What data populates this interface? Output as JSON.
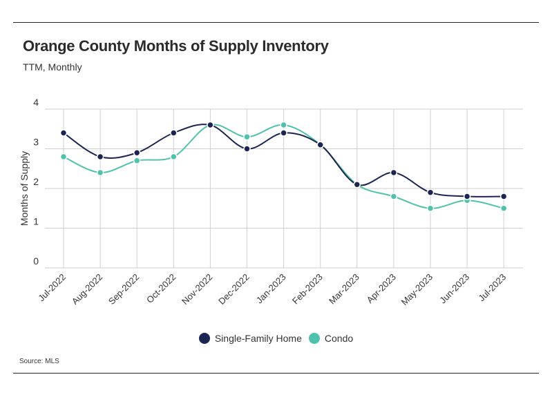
{
  "title": "Orange County Months of Supply Inventory",
  "subtitle": "TTM, Monthly",
  "source": "Source:  MLS",
  "chart_data": {
    "type": "line",
    "title": "Orange County Months of Supply Inventory",
    "subtitle": "TTM, Monthly",
    "xlabel": "",
    "ylabel": "Months of Supply",
    "ylim": [
      0,
      4
    ],
    "yticks": [
      0,
      1,
      2,
      3,
      4
    ],
    "grid": true,
    "legend": "bottom",
    "categories": [
      "Jul-2022",
      "Aug-2022",
      "Sep-2022",
      "Oct-2022",
      "Nov-2022",
      "Dec-2022",
      "Jan-2023",
      "Feb-2023",
      "Mar-2023",
      "Apr-2023",
      "May-2023",
      "Jun-2023",
      "Jul-2023"
    ],
    "series": [
      {
        "name": "Single-Family Home",
        "color": "#1c2551",
        "values": [
          3.4,
          2.8,
          2.9,
          3.4,
          3.6,
          3.0,
          3.4,
          3.1,
          2.1,
          2.4,
          1.9,
          1.8,
          1.8
        ]
      },
      {
        "name": "Condo",
        "color": "#4fc1ad",
        "values": [
          2.8,
          2.4,
          2.7,
          2.8,
          3.6,
          3.3,
          3.6,
          3.1,
          2.1,
          1.8,
          1.5,
          1.7,
          1.5
        ]
      }
    ]
  }
}
